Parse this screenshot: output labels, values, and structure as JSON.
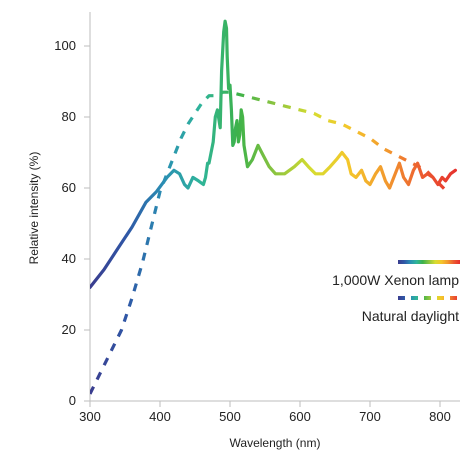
{
  "chart_data": {
    "type": "line",
    "xlabel": "Wavelength (nm)",
    "ylabel": "Relative intensity (%)",
    "xlim": [
      300,
      825
    ],
    "ylim": [
      0,
      110
    ],
    "x_ticks": [
      300,
      400,
      500,
      600,
      700,
      800
    ],
    "y_ticks": [
      0,
      20,
      40,
      60,
      80,
      100
    ],
    "grid": false,
    "legend_position": "bottom-right",
    "series": [
      {
        "name": "1,000W Xenon lamp",
        "style": "solid gradient",
        "points": [
          [
            300,
            32
          ],
          [
            320,
            37
          ],
          [
            340,
            43
          ],
          [
            360,
            49
          ],
          [
            380,
            56
          ],
          [
            395,
            59
          ],
          [
            410,
            63
          ],
          [
            420,
            65
          ],
          [
            428,
            64
          ],
          [
            435,
            61
          ],
          [
            440,
            60
          ],
          [
            447,
            63
          ],
          [
            455,
            62
          ],
          [
            462,
            61
          ],
          [
            465,
            63
          ],
          [
            468,
            67
          ],
          [
            470,
            67
          ],
          [
            473,
            70
          ],
          [
            476,
            73
          ],
          [
            479,
            80
          ],
          [
            482,
            82
          ],
          [
            486,
            77
          ],
          [
            488,
            93
          ],
          [
            491,
            104
          ],
          [
            493,
            107
          ],
          [
            495,
            105
          ],
          [
            496,
            97
          ],
          [
            498,
            88
          ],
          [
            500,
            89
          ],
          [
            502,
            82
          ],
          [
            504,
            72
          ],
          [
            506,
            73
          ],
          [
            508,
            77
          ],
          [
            510,
            79
          ],
          [
            512,
            73
          ],
          [
            514,
            75
          ],
          [
            516,
            82
          ],
          [
            518,
            80
          ],
          [
            520,
            72
          ],
          [
            525,
            66
          ],
          [
            532,
            68
          ],
          [
            540,
            72
          ],
          [
            548,
            69
          ],
          [
            556,
            66
          ],
          [
            565,
            64
          ],
          [
            578,
            64
          ],
          [
            592,
            66
          ],
          [
            603,
            68
          ],
          [
            612,
            66
          ],
          [
            622,
            64
          ],
          [
            633,
            64
          ],
          [
            643,
            66
          ],
          [
            652,
            68
          ],
          [
            660,
            70
          ],
          [
            668,
            68
          ],
          [
            673,
            64
          ],
          [
            680,
            63
          ],
          [
            688,
            65
          ],
          [
            694,
            62
          ],
          [
            700,
            61
          ],
          [
            708,
            64
          ],
          [
            715,
            66
          ],
          [
            722,
            62
          ],
          [
            728,
            60
          ],
          [
            736,
            64
          ],
          [
            742,
            67
          ],
          [
            748,
            63
          ],
          [
            755,
            61
          ],
          [
            762,
            65
          ],
          [
            768,
            67
          ],
          [
            775,
            63
          ],
          [
            782,
            64
          ],
          [
            790,
            63
          ],
          [
            797,
            61
          ],
          [
            803,
            63
          ],
          [
            808,
            62
          ],
          [
            815,
            64
          ],
          [
            822,
            65
          ]
        ]
      },
      {
        "name": "Natural daylight",
        "style": "dashed gradient",
        "points": [
          [
            300,
            2
          ],
          [
            315,
            8
          ],
          [
            330,
            14
          ],
          [
            345,
            20
          ],
          [
            360,
            29
          ],
          [
            375,
            39
          ],
          [
            390,
            51
          ],
          [
            400,
            59
          ],
          [
            410,
            64
          ],
          [
            420,
            69
          ],
          [
            430,
            74
          ],
          [
            440,
            78
          ],
          [
            450,
            81
          ],
          [
            460,
            84
          ],
          [
            470,
            86
          ],
          [
            480,
            86
          ],
          [
            490,
            87
          ],
          [
            500,
            87
          ],
          [
            520,
            86
          ],
          [
            540,
            85
          ],
          [
            560,
            84
          ],
          [
            580,
            83
          ],
          [
            600,
            82
          ],
          [
            620,
            81
          ],
          [
            640,
            79
          ],
          [
            660,
            78
          ],
          [
            680,
            76
          ],
          [
            700,
            74
          ],
          [
            720,
            71
          ],
          [
            740,
            69
          ],
          [
            760,
            67
          ],
          [
            780,
            65
          ],
          [
            800,
            61
          ],
          [
            810,
            59
          ]
        ]
      }
    ],
    "color_stops": [
      "#3a3c8e",
      "#2f57a6",
      "#2a8fb3",
      "#2fb59a",
      "#3db24a",
      "#8cc43f",
      "#d6dc30",
      "#f4c62b",
      "#f29a2e",
      "#ec5a30",
      "#e52d2d"
    ]
  }
}
